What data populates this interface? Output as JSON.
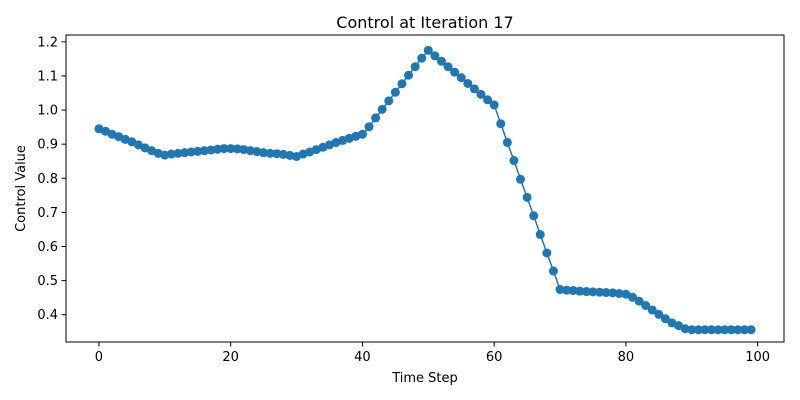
{
  "chart_data": {
    "type": "line",
    "title": "Control at Iteration 17",
    "xlabel": "Time Step",
    "ylabel": "Control Value",
    "xlim": [
      -5,
      104
    ],
    "ylim": [
      0.32,
      1.22
    ],
    "xticks": [
      0,
      20,
      40,
      60,
      80,
      100
    ],
    "yticks": [
      0.4,
      0.5,
      0.6,
      0.7,
      0.8,
      0.9,
      1.0,
      1.1,
      1.2
    ],
    "grid": false,
    "series": [
      {
        "color": "#1f77b4",
        "marker": "circle",
        "x": [
          0,
          1,
          2,
          3,
          4,
          5,
          6,
          7,
          8,
          9,
          10,
          11,
          12,
          13,
          14,
          15,
          16,
          17,
          18,
          19,
          20,
          21,
          22,
          23,
          24,
          25,
          26,
          27,
          28,
          29,
          30,
          31,
          32,
          33,
          34,
          35,
          36,
          37,
          38,
          39,
          40,
          41,
          42,
          43,
          44,
          45,
          46,
          47,
          48,
          49,
          50,
          51,
          52,
          53,
          54,
          55,
          56,
          57,
          58,
          59,
          60,
          61,
          62,
          63,
          64,
          65,
          66,
          67,
          68,
          69,
          70,
          71,
          72,
          73,
          74,
          75,
          76,
          77,
          78,
          79,
          80,
          81,
          82,
          83,
          84,
          85,
          86,
          87,
          88,
          89,
          90,
          91,
          92,
          93,
          94,
          95,
          96,
          97,
          98,
          99
        ],
        "y": [
          0.945,
          0.938,
          0.929,
          0.922,
          0.914,
          0.907,
          0.898,
          0.889,
          0.881,
          0.873,
          0.868,
          0.871,
          0.873,
          0.875,
          0.877,
          0.879,
          0.881,
          0.883,
          0.885,
          0.887,
          0.887,
          0.886,
          0.884,
          0.881,
          0.878,
          0.875,
          0.873,
          0.872,
          0.87,
          0.867,
          0.864,
          0.871,
          0.877,
          0.884,
          0.891,
          0.898,
          0.905,
          0.911,
          0.917,
          0.923,
          0.929,
          0.951,
          0.977,
          1.002,
          1.027,
          1.052,
          1.077,
          1.102,
          1.127,
          1.152,
          1.175,
          1.159,
          1.143,
          1.127,
          1.111,
          1.095,
          1.078,
          1.062,
          1.046,
          1.03,
          1.015,
          0.96,
          0.905,
          0.852,
          0.797,
          0.744,
          0.69,
          0.635,
          0.581,
          0.528,
          0.474,
          0.472,
          0.471,
          0.469,
          0.468,
          0.467,
          0.466,
          0.465,
          0.464,
          0.462,
          0.46,
          0.451,
          0.44,
          0.427,
          0.414,
          0.401,
          0.388,
          0.376,
          0.368,
          0.359,
          0.356,
          0.356,
          0.356,
          0.356,
          0.356,
          0.356,
          0.356,
          0.356,
          0.356,
          0.356
        ]
      }
    ]
  }
}
